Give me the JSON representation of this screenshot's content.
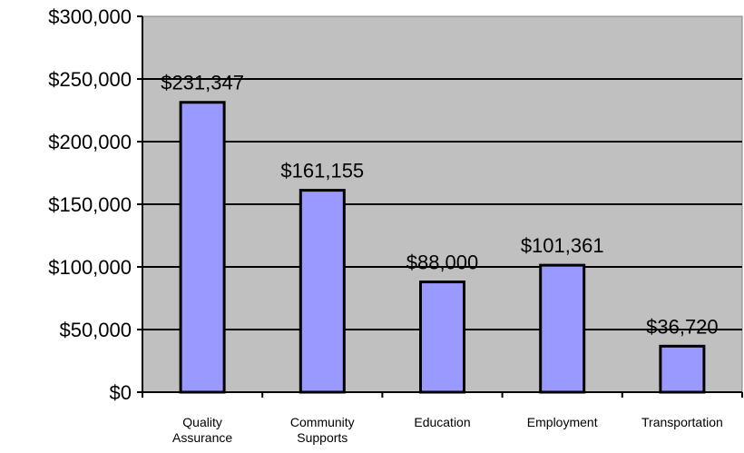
{
  "chart_data": {
    "type": "bar",
    "title": "",
    "xlabel": "",
    "ylabel": "",
    "categories": [
      [
        "Quality",
        "Assurance"
      ],
      [
        "Community",
        "Supports"
      ],
      [
        "Education"
      ],
      [
        "Employment"
      ],
      [
        "Transportation"
      ]
    ],
    "values": [
      231347,
      161155,
      88000,
      101361,
      36720
    ],
    "data_labels": [
      "$231,347",
      "$161,155",
      "$88,000",
      "$101,361",
      "$36,720"
    ],
    "ylim": [
      0,
      300000
    ],
    "yticks": [
      0,
      50000,
      100000,
      150000,
      200000,
      250000,
      300000
    ],
    "ytick_labels": [
      "$0",
      "$50,000",
      "$100,000",
      "$150,000",
      "$200,000",
      "$250,000",
      "$300,000"
    ],
    "grid": true,
    "colors": {
      "plot_background": "#c0c0c0",
      "bar_fill": "#9999ff",
      "bar_stroke": "#000000",
      "gridline": "#000000"
    }
  }
}
